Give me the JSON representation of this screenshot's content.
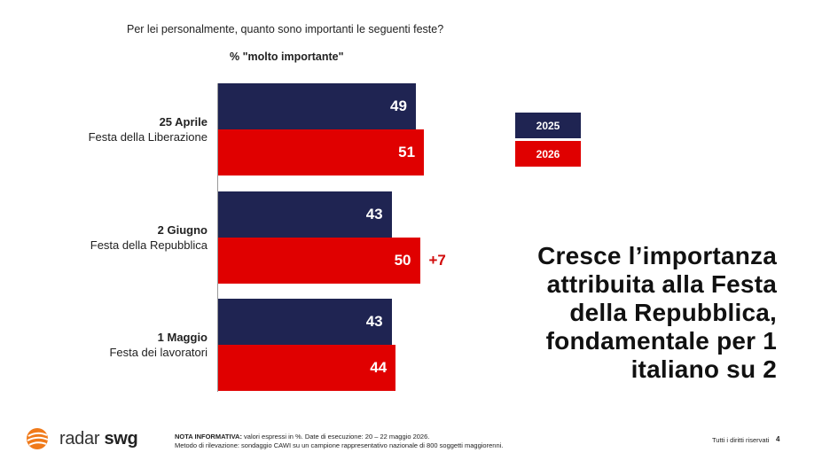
{
  "question": "Per lei personalmente, quanto sono importanti le seguenti feste?",
  "subtitle": "% \"molto importante\"",
  "colors": {
    "2025": "#1f2452",
    "2026": "#e00000",
    "delta": "#d10a0a"
  },
  "chart_data": {
    "type": "bar",
    "orientation": "horizontal",
    "title": "% \"molto importante\"",
    "categories": [
      {
        "name": "25 Aprile",
        "desc": "Festa della Liberazione"
      },
      {
        "name": "2 Giugno",
        "desc": "Festa della Repubblica"
      },
      {
        "name": "1 Maggio",
        "desc": "Festa dei lavoratori"
      }
    ],
    "series": [
      {
        "name": "2025",
        "values": [
          49,
          43,
          43
        ]
      },
      {
        "name": "2026",
        "values": [
          51,
          50,
          44
        ]
      }
    ],
    "annotations": [
      "",
      "+7",
      ""
    ],
    "xlim": [
      0,
      100
    ],
    "legend": "right"
  },
  "legend": [
    "2025",
    "2026"
  ],
  "headline": [
    "Cresce  l’importanza",
    "attribuita alla Festa",
    "della Repubblica,",
    "fondamentale per 1",
    "italiano su 2"
  ],
  "footer": {
    "brand": "radar swg",
    "brand_light": "radar ",
    "brand_bold": "swg",
    "note_label": "NOTA INFORMATIVA:",
    "note_text": " valori espressi in %. Date di esecuzione: 20 – 22 maggio 2026.",
    "note_line2": "Metodo di rilevazione: sondaggio CAWI su un campione rappresentativo nazionale di 800 soggetti maggiorenni.",
    "rights": "Tutti i diritti riservati",
    "page": "4"
  }
}
